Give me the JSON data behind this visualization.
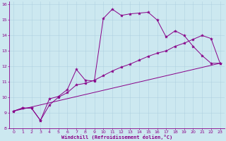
{
  "xlabel": "Windchill (Refroidissement éolien,°C)",
  "background_color": "#cce8f0",
  "line_color": "#880088",
  "xlim": [
    -0.5,
    23.5
  ],
  "ylim": [
    8,
    16.2
  ],
  "xticks": [
    0,
    1,
    2,
    3,
    4,
    5,
    6,
    7,
    8,
    9,
    10,
    11,
    12,
    13,
    14,
    15,
    16,
    17,
    18,
    19,
    20,
    21,
    22,
    23
  ],
  "yticks": [
    8,
    9,
    10,
    11,
    12,
    13,
    14,
    15,
    16
  ],
  "series": [
    {
      "x": [
        0,
        1,
        2,
        3,
        4,
        5,
        6,
        7,
        8,
        9,
        10,
        11,
        12,
        13,
        14,
        15,
        16,
        17,
        18,
        19,
        20,
        21,
        22,
        23
      ],
      "y": [
        9.1,
        9.3,
        9.3,
        8.5,
        9.9,
        10.05,
        10.5,
        11.8,
        11.1,
        11.05,
        15.1,
        15.7,
        15.3,
        15.4,
        15.45,
        15.5,
        15.0,
        13.9,
        14.3,
        14.0,
        13.3,
        12.7,
        12.2,
        12.2
      ]
    },
    {
      "x": [
        0,
        1,
        2,
        3,
        4,
        5,
        6,
        7,
        8,
        9,
        10,
        11,
        12,
        13,
        14,
        15,
        16,
        17,
        18,
        19,
        20,
        21,
        22,
        23
      ],
      "y": [
        9.1,
        9.3,
        9.3,
        8.5,
        9.5,
        10.0,
        10.3,
        10.8,
        10.9,
        11.1,
        11.4,
        11.7,
        11.95,
        12.15,
        12.4,
        12.65,
        12.85,
        13.0,
        13.3,
        13.5,
        13.75,
        14.0,
        13.8,
        12.2
      ]
    },
    {
      "x": [
        0,
        23
      ],
      "y": [
        9.1,
        12.2
      ]
    }
  ]
}
